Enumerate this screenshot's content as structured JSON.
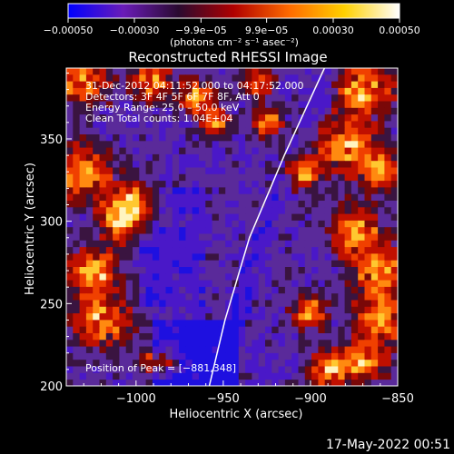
{
  "chart_data": {
    "type": "heatmap",
    "title": "Reconstructed RHESSI Image",
    "xlabel": "Heliocentric X (arcsec)",
    "ylabel": "Heliocentric Y (arcsec)",
    "xlim": [
      -1040,
      -850
    ],
    "ylim": [
      200,
      393
    ],
    "x_ticks": [
      -1000,
      -950,
      -900,
      -850
    ],
    "x_tick_labels": [
      "−1000",
      "−950",
      "−900",
      "−850"
    ],
    "y_ticks": [
      200,
      250,
      300,
      350
    ],
    "y_tick_labels": [
      "200",
      "250",
      "300",
      "350"
    ],
    "colorbar": {
      "range": [
        -0.0005,
        0.0005
      ],
      "ticks": [
        -0.0005,
        -0.0003,
        -9.9e-05,
        9.9e-05,
        0.0003,
        0.0005
      ],
      "tick_labels": [
        "−0.00050",
        "−0.00030",
        "−9.9e−05",
        "9.9e−05",
        "0.00030",
        "0.00050"
      ],
      "units": "(photons cm⁻² s⁻¹ asec⁻²)",
      "colors": [
        "#0000ff",
        "#6a1cb8",
        "#2a0a30",
        "#b00000",
        "#ff6a00",
        "#ffd000",
        "#ffffff"
      ]
    },
    "annotations": [
      "31-Dec-2012 04:11:52.000 to 04:17:52.000",
      "Detectors: 3F 4F 5F 6F 7F 8F, Att 0",
      "Energy Range: 25.0 – 50.0 keV",
      "Clean     Total counts: 1.04E+04"
    ],
    "peak_text": "Position of Peak = [−881,348]",
    "peak": [
      -881,
      348
    ],
    "limb_curve": [
      {
        "x": -892,
        "y": 393
      },
      {
        "x": -915,
        "y": 340
      },
      {
        "x": -935,
        "y": 290
      },
      {
        "x": -949,
        "y": 240
      },
      {
        "x": -958,
        "y": 200
      }
    ]
  },
  "footer": {
    "timestamp": "17-May-2022 00:51"
  }
}
